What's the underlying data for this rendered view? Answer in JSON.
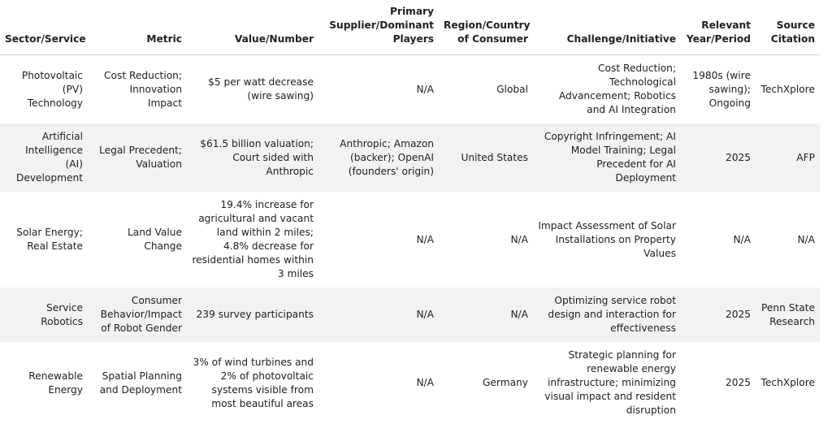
{
  "headers": [
    "Sector/Service",
    "Metric",
    "Value/Number",
    "Primary Supplier/Dominant Players",
    "Region/Country of Consumer",
    "Challenge/Initiative",
    "Relevant Year/Period",
    "Source Citation"
  ],
  "rows": [
    [
      "Photovoltaic (PV) Technology",
      "Cost Reduction; Innovation Impact",
      "$5 per watt decrease (wire sawing)",
      "N/A",
      "Global",
      "Cost Reduction; Technological Advancement; Robotics and AI Integration",
      "1980s (wire sawing); Ongoing",
      "TechXplore"
    ],
    [
      "Artificial Intelligence (AI) Development",
      "Legal Precedent; Valuation",
      "$61.5 billion valuation; Court sided with Anthropic",
      "Anthropic; Amazon (backer); OpenAI (founders' origin)",
      "United States",
      "Copyright Infringement; AI Model Training; Legal Precedent for AI Deployment",
      "2025",
      "AFP"
    ],
    [
      "Solar Energy; Real Estate",
      "Land Value Change",
      "19.4% increase for agricultural and vacant land within 2 miles; 4.8% decrease for residential homes within 3 miles",
      "N/A",
      "N/A",
      "Impact Assessment of Solar Installations on Property Values",
      "N/A",
      "N/A"
    ],
    [
      "Service Robotics",
      "Consumer Behavior/Impact of Robot Gender",
      "239 survey participants",
      "N/A",
      "N/A",
      "Optimizing service robot design and interaction for effectiveness",
      "2025",
      "Penn State Research"
    ],
    [
      "Renewable Energy",
      "Spatial Planning and Deployment",
      "3% of wind turbines and 2% of photovoltaic systems visible from most beautiful areas",
      "N/A",
      "Germany",
      "Strategic planning for renewable energy infrastructure; minimizing visual impact and resident disruption",
      "2025",
      "TechXplore"
    ]
  ]
}
